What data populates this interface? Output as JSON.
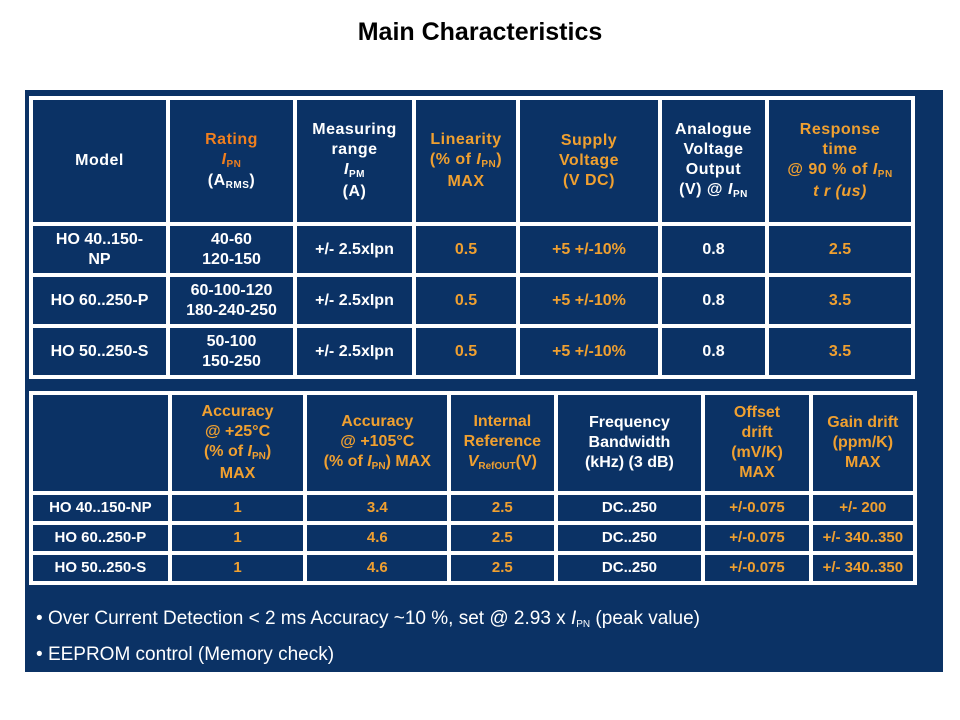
{
  "title": "Main Characteristics",
  "table1": {
    "headers": [
      {
        "lines": [
          "Model"
        ]
      },
      {
        "l1": "Rating",
        "sym": "I",
        "sub": "PN",
        "l3a": "(A",
        "l3sub": "RMS",
        "l3b": ")"
      },
      {
        "l1": "Measuring",
        "l2": "range",
        "sym": "I",
        "sub": "PM",
        "l4": "(A)"
      },
      {
        "l1": "Linearity",
        "l2a": "(% of ",
        "sym": "I",
        "sub": "PN",
        "l2b": ")",
        "l3": "MAX"
      },
      {
        "l1": "Supply",
        "l2": "Voltage",
        "l3": "(V DC)"
      },
      {
        "l1": "Analogue",
        "l2": "Voltage",
        "l3": "Output",
        "l4a": "(V) @ ",
        "sym": "I",
        "sub": "PN"
      },
      {
        "l1": "Response",
        "l2": "time",
        "l3a": "@ 90 % of ",
        "sym": "I",
        "sub": "PN",
        "l4": "t r (us)"
      }
    ],
    "rows": [
      {
        "model": [
          "HO 40..150-",
          "NP"
        ],
        "rating": [
          "40-60",
          "120-150"
        ],
        "range": "+/- 2.5xIpn",
        "linearity": "0.5",
        "supply": "+5 +/-10%",
        "output": "0.8",
        "response": "2.5"
      },
      {
        "model": [
          "HO 60..250-P",
          ""
        ],
        "rating": [
          "60-100-120",
          "180-240-250"
        ],
        "range": "+/- 2.5xIpn",
        "linearity": "0.5",
        "supply": "+5 +/-10%",
        "output": "0.8",
        "response": "3.5"
      },
      {
        "model": [
          "HO 50..250-S",
          ""
        ],
        "rating": [
          "50-100",
          "150-250"
        ],
        "range": "+/- 2.5xIpn",
        "linearity": "0.5",
        "supply": "+5 +/-10%",
        "output": "0.8",
        "response": "3.5"
      }
    ]
  },
  "table2": {
    "headers": [
      {
        "l1": "Accuracy",
        "l2": "@ +25°C",
        "l3a": "(% of ",
        "sym": "I",
        "sub": "PN",
        "l3b": ")",
        "l4": "MAX"
      },
      {
        "l1": "Accuracy",
        "l2": "@ +105°C",
        "l3a": "(% of ",
        "sym": "I",
        "sub": "PN",
        "l3b": ") MAX"
      },
      {
        "l1": "Internal",
        "l2": "Reference",
        "sym": "V",
        "sub": "RefOUT",
        "l3b": "(V)"
      },
      {
        "l1": "Frequency",
        "l2": "Bandwidth",
        "l3": "(kHz) (3 dB)"
      },
      {
        "l1": "Offset",
        "l2": "drift",
        "l3": "(mV/K)",
        "l4": "MAX"
      },
      {
        "l1": "Gain drift",
        "l2": "(ppm/K)",
        "l3": "MAX"
      }
    ],
    "rows": [
      {
        "model": "HO 40..150-NP",
        "acc25": "1",
        "acc105": "3.4",
        "ref": "2.5",
        "bw": "DC..250",
        "offset": "+/-0.075",
        "gain": "+/- 200"
      },
      {
        "model": "HO 60..250-P",
        "acc25": "1",
        "acc105": "4.6",
        "ref": "2.5",
        "bw": "DC..250",
        "offset": "+/-0.075",
        "gain": "+/- 340..350"
      },
      {
        "model": "HO 50..250-S",
        "acc25": "1",
        "acc105": "4.6",
        "ref": "2.5",
        "bw": "DC..250",
        "offset": "+/-0.075",
        "gain": "+/- 340..350"
      }
    ]
  },
  "bullets": [
    {
      "a": "Over Current Detection < 2 ms Accuracy ~10 %, set @ 2.93 x ",
      "sym": "I",
      "sub": "PN",
      "b": " (peak value)"
    },
    {
      "a": "EEPROM control (Memory check)"
    }
  ]
}
